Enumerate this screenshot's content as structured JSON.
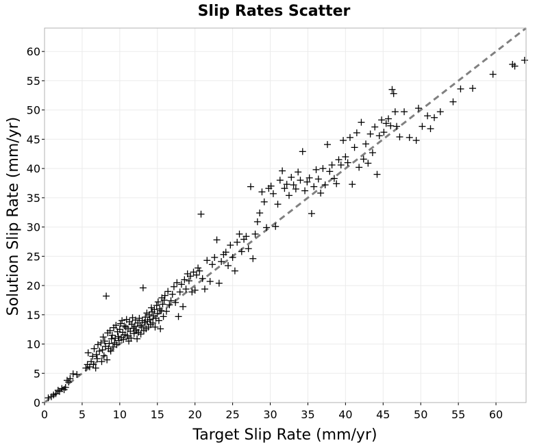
{
  "chart_data": {
    "type": "scatter",
    "title": "Slip Rates Scatter",
    "xlabel": "Target Slip Rate (mm/yr)",
    "ylabel": "Solution Slip Rate (mm/yr)",
    "xlim": [
      0,
      64
    ],
    "ylim": [
      0,
      64
    ],
    "xticks": [
      0,
      5,
      10,
      15,
      20,
      25,
      30,
      35,
      40,
      45,
      50,
      55,
      60
    ],
    "yticks": [
      0,
      5,
      10,
      15,
      20,
      25,
      30,
      35,
      40,
      45,
      50,
      55,
      60
    ],
    "grid": true,
    "marker": "+",
    "marker_color": "#000000",
    "reference_line": {
      "style": "dashed",
      "color": "#808080",
      "from": [
        0,
        0
      ],
      "to": [
        64,
        64
      ]
    },
    "points": [
      [
        0.5,
        0.8
      ],
      [
        0.9,
        1.0
      ],
      [
        1.2,
        1.3
      ],
      [
        1.5,
        1.5
      ],
      [
        1.8,
        2.1
      ],
      [
        2.0,
        1.9
      ],
      [
        2.3,
        2.4
      ],
      [
        2.6,
        2.2
      ],
      [
        2.8,
        2.6
      ],
      [
        3.0,
        3.8
      ],
      [
        3.2,
        3.5
      ],
      [
        3.4,
        4.1
      ],
      [
        3.8,
        4.9
      ],
      [
        4.3,
        4.8
      ],
      [
        5.5,
        5.9
      ],
      [
        5.7,
        6.5
      ],
      [
        5.8,
        8.5
      ],
      [
        6.0,
        6.1
      ],
      [
        6.2,
        7.0
      ],
      [
        6.4,
        7.9
      ],
      [
        6.5,
        6.5
      ],
      [
        6.6,
        9.2
      ],
      [
        6.8,
        5.9
      ],
      [
        6.9,
        8.2
      ],
      [
        7.0,
        7.5
      ],
      [
        7.1,
        9.9
      ],
      [
        7.3,
        8.8
      ],
      [
        7.5,
        10.2
      ],
      [
        7.6,
        7.0
      ],
      [
        7.7,
        9.0
      ],
      [
        7.8,
        11.2
      ],
      [
        7.9,
        8.0
      ],
      [
        8.0,
        10.5
      ],
      [
        8.1,
        9.6
      ],
      [
        8.2,
        18.2
      ],
      [
        8.3,
        7.3
      ],
      [
        8.4,
        11.9
      ],
      [
        8.5,
        9.2
      ],
      [
        8.6,
        10.1
      ],
      [
        8.7,
        12.3
      ],
      [
        8.8,
        8.8
      ],
      [
        8.9,
        10.9
      ],
      [
        9.0,
        11.5
      ],
      [
        9.1,
        9.5
      ],
      [
        9.2,
        12.8
      ],
      [
        9.3,
        10.2
      ],
      [
        9.4,
        11.0
      ],
      [
        9.5,
        13.2
      ],
      [
        9.6,
        9.9
      ],
      [
        9.7,
        12.1
      ],
      [
        9.8,
        11.3
      ],
      [
        9.9,
        10.6
      ],
      [
        10.0,
        12.5
      ],
      [
        10.1,
        13.5
      ],
      [
        10.2,
        11.1
      ],
      [
        10.3,
        14.0
      ],
      [
        10.4,
        12.0
      ],
      [
        10.5,
        10.8
      ],
      [
        10.6,
        13.1
      ],
      [
        10.7,
        11.6
      ],
      [
        10.8,
        12.9
      ],
      [
        10.9,
        14.2
      ],
      [
        11.0,
        11.4
      ],
      [
        11.1,
        12.6
      ],
      [
        11.2,
        10.5
      ],
      [
        11.3,
        13.8
      ],
      [
        11.4,
        12.2
      ],
      [
        11.5,
        11.0
      ],
      [
        11.6,
        13.4
      ],
      [
        11.7,
        14.5
      ],
      [
        11.8,
        12.7
      ],
      [
        11.9,
        11.8
      ],
      [
        12.0,
        13.0
      ],
      [
        12.1,
        14.1
      ],
      [
        12.2,
        12.4
      ],
      [
        12.3,
        10.9
      ],
      [
        12.4,
        13.6
      ],
      [
        12.5,
        12.0
      ],
      [
        12.6,
        14.4
      ],
      [
        12.7,
        13.2
      ],
      [
        12.8,
        11.7
      ],
      [
        12.9,
        12.9
      ],
      [
        13.0,
        14.0
      ],
      [
        13.1,
        19.6
      ],
      [
        13.2,
        12.3
      ],
      [
        13.3,
        13.7
      ],
      [
        13.4,
        14.6
      ],
      [
        13.5,
        12.6
      ],
      [
        13.6,
        15.3
      ],
      [
        13.7,
        13.9
      ],
      [
        13.8,
        12.9
      ],
      [
        13.9,
        15.0
      ],
      [
        14.0,
        14.2
      ],
      [
        14.1,
        13.3
      ],
      [
        14.2,
        16.2
      ],
      [
        14.3,
        15.5
      ],
      [
        14.4,
        13.6
      ],
      [
        14.5,
        14.8
      ],
      [
        14.6,
        15.9
      ],
      [
        14.7,
        12.9
      ],
      [
        14.8,
        14.4
      ],
      [
        14.9,
        16.6
      ],
      [
        15.0,
        15.2
      ],
      [
        15.1,
        17.2
      ],
      [
        15.2,
        14.0
      ],
      [
        15.3,
        16.0
      ],
      [
        15.4,
        12.6
      ],
      [
        15.5,
        15.7
      ],
      [
        15.6,
        17.9
      ],
      [
        15.7,
        16.8
      ],
      [
        15.8,
        14.7
      ],
      [
        15.9,
        17.5
      ],
      [
        16.0,
        18.3
      ],
      [
        16.2,
        15.6
      ],
      [
        16.4,
        19.0
      ],
      [
        16.6,
        16.7
      ],
      [
        16.8,
        17.4
      ],
      [
        17.0,
        18.5
      ],
      [
        17.2,
        19.8
      ],
      [
        17.4,
        17.1
      ],
      [
        17.6,
        20.5
      ],
      [
        17.8,
        14.7
      ],
      [
        18.0,
        18.9
      ],
      [
        18.2,
        20.2
      ],
      [
        18.4,
        16.4
      ],
      [
        18.6,
        21.0
      ],
      [
        18.8,
        19.4
      ],
      [
        19.0,
        22.0
      ],
      [
        19.2,
        20.8
      ],
      [
        19.4,
        21.6
      ],
      [
        19.6,
        18.9
      ],
      [
        19.8,
        22.3
      ],
      [
        20.0,
        19.2
      ],
      [
        20.2,
        21.8
      ],
      [
        20.4,
        23.0
      ],
      [
        20.6,
        22.5
      ],
      [
        20.8,
        32.2
      ],
      [
        21.0,
        21.2
      ],
      [
        21.3,
        19.4
      ],
      [
        21.6,
        24.3
      ],
      [
        22.0,
        20.7
      ],
      [
        22.3,
        23.6
      ],
      [
        22.6,
        24.8
      ],
      [
        22.9,
        27.8
      ],
      [
        23.2,
        20.4
      ],
      [
        23.5,
        24.1
      ],
      [
        23.8,
        25.3
      ],
      [
        24.1,
        25.7
      ],
      [
        24.4,
        23.4
      ],
      [
        24.7,
        26.9
      ],
      [
        25.0,
        24.8
      ],
      [
        25.3,
        22.5
      ],
      [
        25.6,
        27.4
      ],
      [
        25.9,
        28.8
      ],
      [
        26.2,
        25.8
      ],
      [
        26.5,
        27.9
      ],
      [
        26.8,
        28.4
      ],
      [
        27.1,
        26.3
      ],
      [
        27.4,
        36.9
      ],
      [
        27.7,
        24.6
      ],
      [
        28.0,
        28.8
      ],
      [
        28.3,
        30.9
      ],
      [
        28.6,
        32.4
      ],
      [
        28.9,
        36.0
      ],
      [
        29.2,
        34.3
      ],
      [
        29.5,
        29.9
      ],
      [
        29.8,
        36.6
      ],
      [
        30.1,
        37.0
      ],
      [
        30.4,
        35.7
      ],
      [
        30.7,
        30.1
      ],
      [
        31.0,
        33.9
      ],
      [
        31.3,
        38.0
      ],
      [
        31.6,
        39.6
      ],
      [
        31.9,
        36.6
      ],
      [
        32.2,
        37.3
      ],
      [
        32.5,
        35.4
      ],
      [
        32.8,
        38.5
      ],
      [
        33.1,
        37.2
      ],
      [
        33.4,
        36.5
      ],
      [
        33.7,
        39.4
      ],
      [
        34.0,
        38.0
      ],
      [
        34.3,
        42.9
      ],
      [
        34.6,
        36.2
      ],
      [
        34.9,
        37.7
      ],
      [
        35.2,
        38.4
      ],
      [
        35.5,
        32.3
      ],
      [
        35.8,
        36.9
      ],
      [
        36.1,
        39.8
      ],
      [
        36.4,
        38.2
      ],
      [
        36.7,
        35.8
      ],
      [
        37.0,
        40.0
      ],
      [
        37.3,
        37.2
      ],
      [
        37.6,
        44.1
      ],
      [
        37.9,
        39.5
      ],
      [
        38.2,
        40.6
      ],
      [
        38.5,
        38.3
      ],
      [
        38.8,
        37.4
      ],
      [
        39.1,
        41.5
      ],
      [
        39.4,
        40.6
      ],
      [
        39.7,
        44.8
      ],
      [
        40.0,
        42.0
      ],
      [
        40.3,
        41.0
      ],
      [
        40.6,
        45.3
      ],
      [
        40.9,
        37.3
      ],
      [
        41.2,
        43.6
      ],
      [
        41.5,
        46.1
      ],
      [
        41.8,
        40.2
      ],
      [
        42.1,
        47.9
      ],
      [
        42.4,
        41.6
      ],
      [
        42.7,
        44.2
      ],
      [
        43.0,
        40.9
      ],
      [
        43.3,
        45.9
      ],
      [
        43.6,
        42.7
      ],
      [
        43.9,
        47.1
      ],
      [
        44.2,
        39.0
      ],
      [
        44.5,
        45.6
      ],
      [
        44.8,
        48.3
      ],
      [
        45.1,
        46.2
      ],
      [
        45.4,
        47.7
      ],
      [
        45.7,
        48.5
      ],
      [
        46.0,
        47.3
      ],
      [
        46.2,
        53.5
      ],
      [
        46.4,
        52.8
      ],
      [
        46.6,
        49.7
      ],
      [
        46.8,
        47.2
      ],
      [
        47.2,
        45.4
      ],
      [
        47.8,
        49.7
      ],
      [
        48.5,
        45.3
      ],
      [
        49.4,
        44.8
      ],
      [
        49.7,
        50.3
      ],
      [
        50.2,
        47.2
      ],
      [
        50.9,
        49.0
      ],
      [
        51.3,
        46.8
      ],
      [
        51.8,
        48.7
      ],
      [
        52.6,
        49.7
      ],
      [
        54.3,
        51.4
      ],
      [
        55.3,
        53.6
      ],
      [
        56.9,
        53.7
      ],
      [
        59.6,
        56.1
      ],
      [
        62.2,
        57.8
      ],
      [
        62.5,
        57.5
      ],
      [
        63.8,
        58.5
      ]
    ]
  }
}
